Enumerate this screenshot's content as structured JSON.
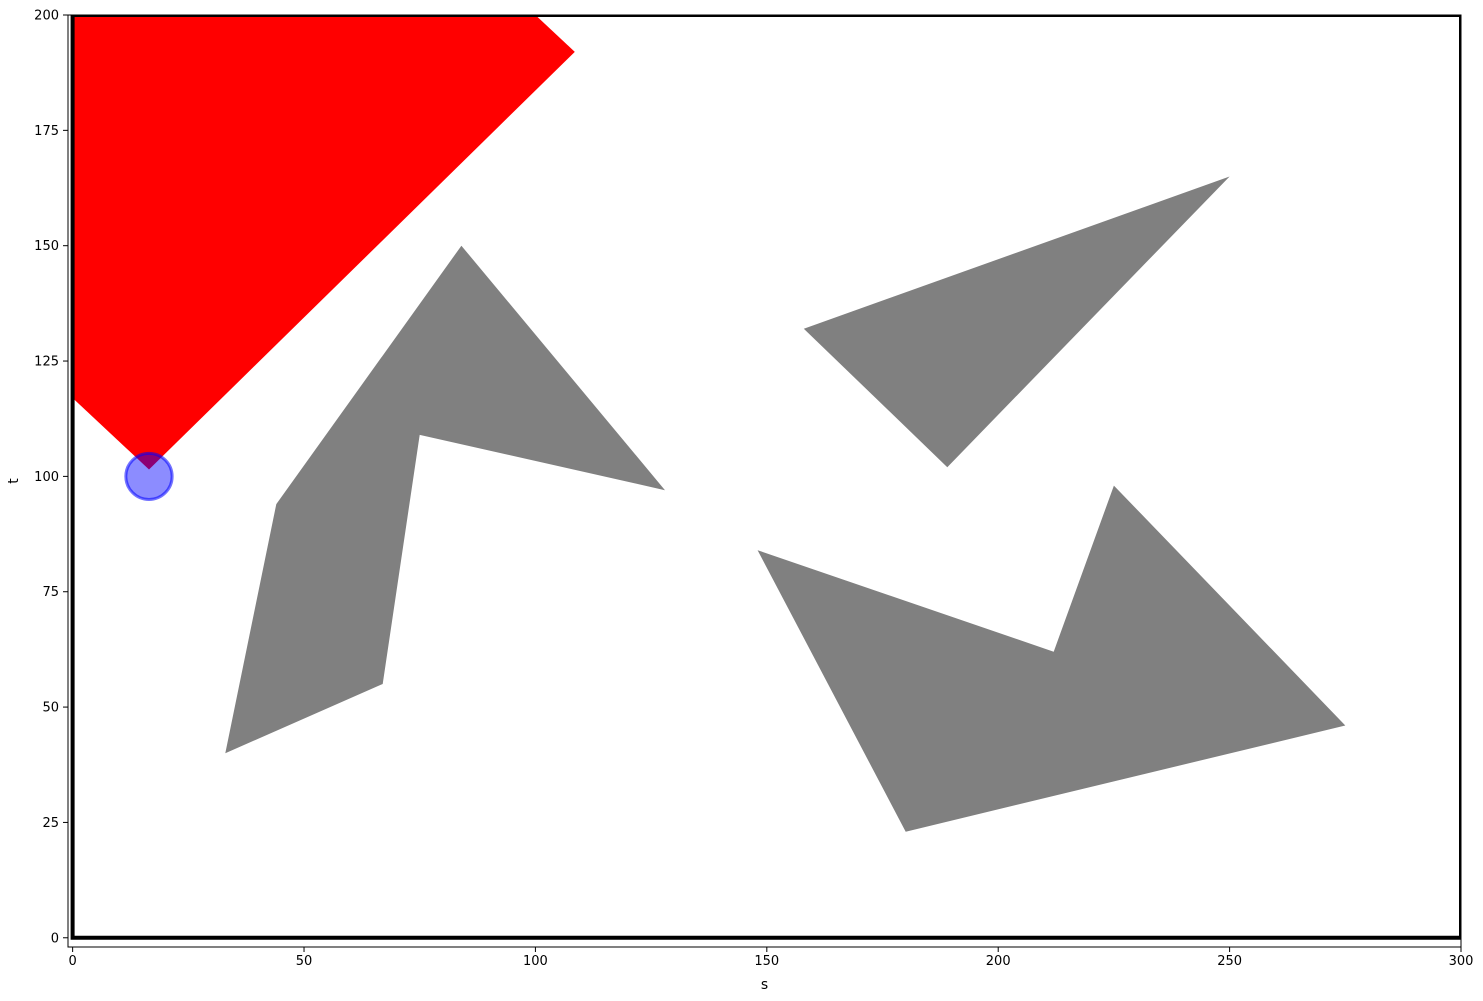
{
  "chart_data": {
    "type": "scatter",
    "title": "",
    "xlabel": "s",
    "ylabel": "t",
    "xlim": [
      -1,
      300
    ],
    "ylim": [
      -2,
      200
    ],
    "xticks": [
      0,
      50,
      100,
      150,
      200,
      250,
      300
    ],
    "yticks": [
      0,
      25,
      50,
      75,
      100,
      125,
      150,
      175,
      200
    ],
    "grid": false,
    "legend": "none",
    "boundary": {
      "points": [
        [
          0,
          0
        ],
        [
          300,
          0
        ],
        [
          300,
          200
        ],
        [
          0,
          200
        ]
      ],
      "color": "#000000"
    },
    "obstacles": [
      {
        "points": [
          [
            84,
            150
          ],
          [
            128,
            97
          ],
          [
            75,
            109
          ],
          [
            67,
            55
          ],
          [
            33,
            40
          ],
          [
            44,
            94
          ]
        ],
        "color": "#808080"
      },
      {
        "points": [
          [
            158,
            132
          ],
          [
            250,
            165
          ],
          [
            189,
            102
          ]
        ],
        "color": "#808080"
      },
      {
        "points": [
          [
            148,
            84
          ],
          [
            212,
            62
          ],
          [
            225,
            98
          ],
          [
            275,
            46
          ],
          [
            180,
            23
          ]
        ],
        "color": "#808080"
      }
    ],
    "visibility_region": {
      "points": [
        [
          16.5,
          101.5
        ],
        [
          108.5,
          192
        ],
        [
          100,
          200
        ],
        [
          0,
          200
        ],
        [
          0,
          117
        ]
      ],
      "color": "#ff0000"
    },
    "agent": {
      "x": 16.5,
      "y": 100,
      "radius": 5,
      "fill": "#0000ff",
      "fill_opacity": 0.45
    }
  }
}
